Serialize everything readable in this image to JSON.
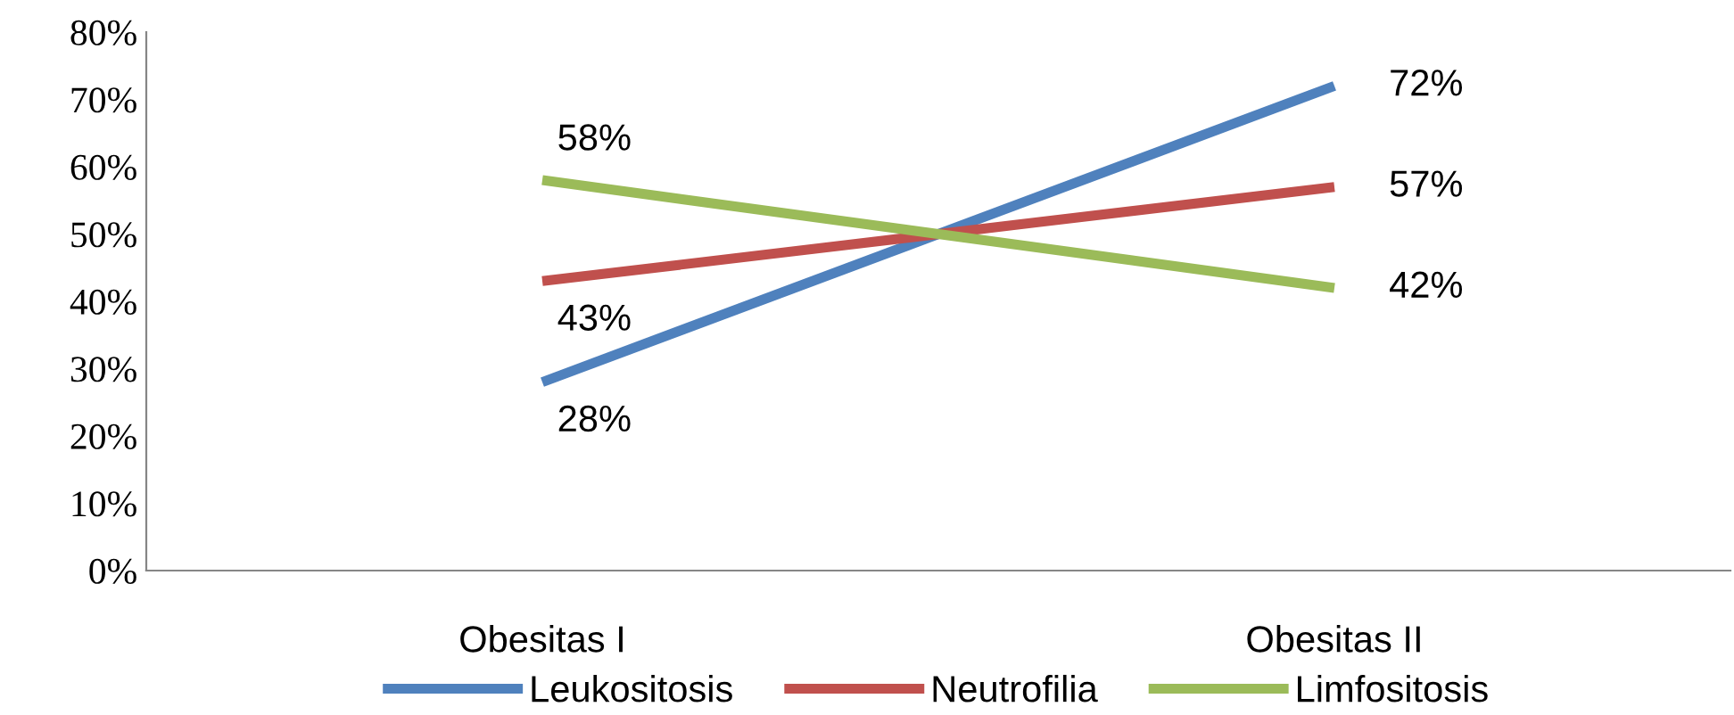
{
  "chart_data": {
    "type": "line",
    "categories": [
      "Obesitas I",
      "Obesitas II"
    ],
    "series": [
      {
        "name": "Leukositosis",
        "color": "#4f81bd",
        "values": [
          28,
          72
        ],
        "value_labels": [
          "28%",
          "72%"
        ]
      },
      {
        "name": "Neutrofilia",
        "color": "#c0504d",
        "values": [
          43,
          57
        ],
        "value_labels": [
          "43%",
          "57%"
        ]
      },
      {
        "name": "Limfositosis",
        "color": "#9bbb59",
        "values": [
          58,
          42
        ],
        "value_labels": [
          "58%",
          "42%"
        ]
      }
    ],
    "ylim": [
      0,
      80
    ],
    "yticks": [
      {
        "value": 0,
        "label": "0%"
      },
      {
        "value": 10,
        "label": "10%"
      },
      {
        "value": 20,
        "label": "20%"
      },
      {
        "value": 30,
        "label": "30%"
      },
      {
        "value": 40,
        "label": "40%"
      },
      {
        "value": 50,
        "label": "50%"
      },
      {
        "value": 60,
        "label": "60%"
      },
      {
        "value": 70,
        "label": "70%"
      },
      {
        "value": 80,
        "label": "80%"
      }
    ],
    "grid": false,
    "legend": "bottom",
    "marker": "none",
    "line_style": "solid"
  }
}
